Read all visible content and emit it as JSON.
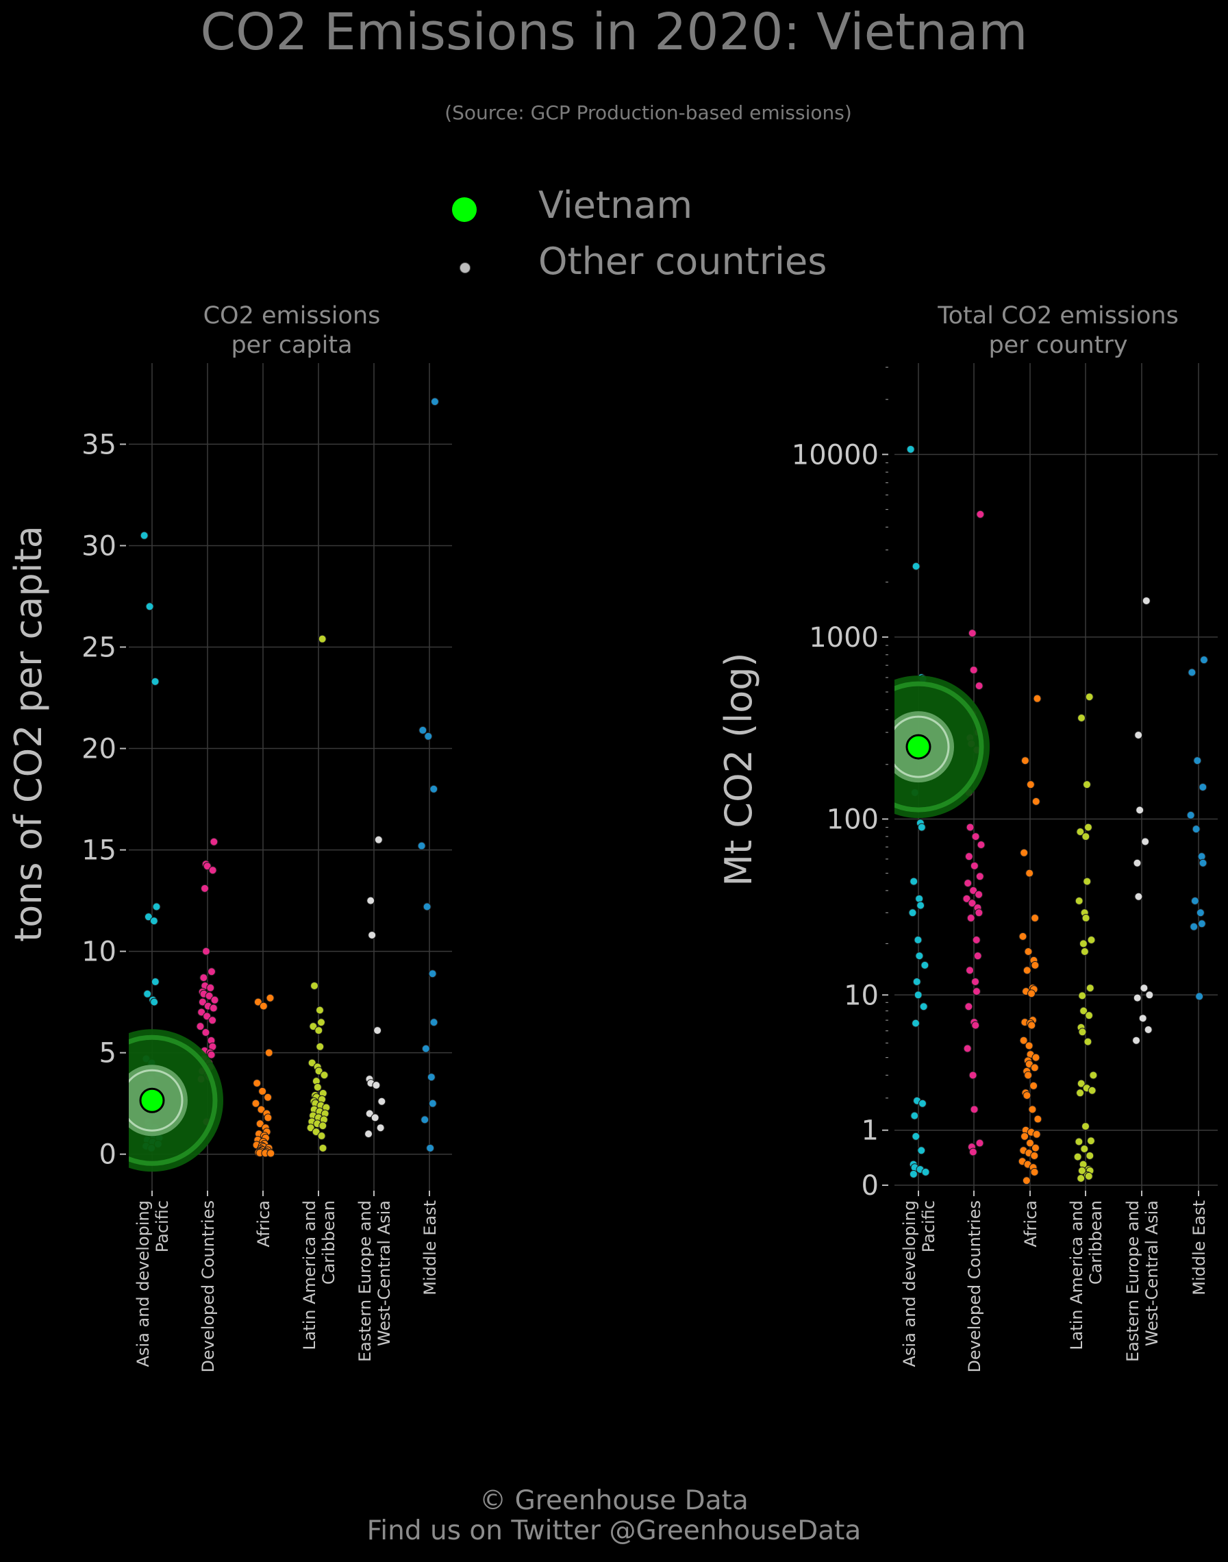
{
  "title": "CO2 Emissions in 2020: Vietnam",
  "subtitle": "(Source: GCP Production-based emissions)",
  "legend": {
    "highlight_label": "Vietnam",
    "other_label": "Other countries",
    "highlight_color": "#00ff00",
    "other_color": "#bdbdbd"
  },
  "footer": {
    "line1": "© Greenhouse Data",
    "line2": "Find us on Twitter @GreenhouseData"
  },
  "colors": {
    "Asia and developing Pacific": "#17becf",
    "Developed Countries": "#e7298a",
    "Africa": "#ff7f0e",
    "Latin America and Caribbean": "#bcd22b",
    "Eastern Europe and West-Central Asia": "#dcdcdc",
    "Middle East": "#1f8fc9"
  },
  "chart_data": [
    {
      "type": "scatter",
      "title_line1": "CO2 emissions",
      "title_line2": "per capita",
      "ylabel": "tons of CO2 per capita",
      "ylim": [
        -1.8,
        39
      ],
      "yticks": [
        0,
        5,
        10,
        15,
        20,
        25,
        30,
        35
      ],
      "grid": true,
      "categories": [
        [
          "Asia and developing",
          "Pacific"
        ],
        [
          "Developed Countries"
        ],
        [
          "Africa"
        ],
        [
          "Latin America and",
          "Caribbean"
        ],
        [
          "Eastern Europe and",
          "West-Central Asia"
        ],
        [
          "Middle East"
        ]
      ],
      "highlight": {
        "category": 0,
        "value": 2.65,
        "name": "Vietnam"
      },
      "series": [
        {
          "category": "Asia and developing Pacific",
          "values": [
            30.5,
            27.0,
            23.3,
            12.2,
            11.7,
            11.5,
            8.5,
            7.9,
            7.6,
            7.5,
            4.7,
            4.5,
            4.2,
            4.0,
            3.7,
            3.4,
            3.0,
            2.5,
            2.2,
            1.9,
            1.6,
            1.4,
            1.3,
            1.2,
            1.0,
            0.9,
            0.8,
            0.7,
            0.6,
            0.5,
            0.4,
            0.3
          ]
        },
        {
          "category": "Developed Countries",
          "values": [
            15.4,
            14.3,
            14.2,
            14.0,
            13.1,
            10.0,
            9.0,
            8.7,
            8.3,
            8.2,
            8.0,
            7.9,
            7.8,
            7.6,
            7.5,
            7.3,
            7.2,
            7.0,
            6.8,
            6.6,
            6.3,
            6.0,
            5.6,
            5.3,
            5.1,
            5.0,
            4.9,
            4.7,
            4.5,
            4.3,
            4.1,
            3.9,
            3.8,
            3.7,
            1.6
          ]
        },
        {
          "category": "Africa",
          "values": [
            7.7,
            7.5,
            7.3,
            5.0,
            3.5,
            3.1,
            2.8,
            2.5,
            2.2,
            2.0,
            1.8,
            1.5,
            1.3,
            1.1,
            1.0,
            0.9,
            0.8,
            0.7,
            0.6,
            0.5,
            0.45,
            0.4,
            0.35,
            0.3,
            0.25,
            0.2,
            0.18,
            0.15,
            0.12,
            0.1,
            0.08,
            0.06,
            0.05,
            0.04
          ]
        },
        {
          "category": "Latin America and Caribbean",
          "values": [
            25.4,
            8.3,
            7.1,
            6.5,
            6.3,
            6.1,
            5.3,
            4.5,
            4.3,
            4.1,
            3.9,
            3.6,
            3.3,
            3.0,
            2.9,
            2.8,
            2.7,
            2.6,
            2.5,
            2.4,
            2.3,
            2.2,
            2.1,
            2.0,
            1.9,
            1.8,
            1.7,
            1.6,
            1.5,
            1.4,
            1.3,
            1.1,
            0.9,
            0.3
          ]
        },
        {
          "category": "Eastern Europe and West-Central Asia",
          "values": [
            15.5,
            12.5,
            10.8,
            6.1,
            3.7,
            3.5,
            3.4,
            2.6,
            2.0,
            1.8,
            1.3,
            1.0
          ]
        },
        {
          "category": "Middle East",
          "values": [
            37.1,
            20.9,
            20.6,
            18.0,
            15.2,
            12.2,
            8.9,
            6.5,
            5.2,
            3.8,
            2.5,
            1.7,
            0.3
          ]
        }
      ]
    },
    {
      "type": "scatter",
      "title_line1": "Total CO2 emissions",
      "title_line2": "per country",
      "ylabel": "Mt CO2 (log)",
      "yscale": "log1p",
      "ylim": [
        -0.03,
        4.5
      ],
      "yticks": [
        0,
        1,
        10,
        100,
        1000,
        10000
      ],
      "grid": true,
      "categories": [
        [
          "Asia and developing",
          "Pacific"
        ],
        [
          "Developed Countries"
        ],
        [
          "Africa"
        ],
        [
          "Latin America and",
          "Caribbean"
        ],
        [
          "Eastern Europe and",
          "West-Central Asia"
        ],
        [
          "Middle East"
        ]
      ],
      "highlight": {
        "category": 0,
        "value": 250,
        "name": "Vietnam"
      },
      "series": [
        {
          "category": "Asia and developing Pacific",
          "values": [
            10668,
            2440,
            600,
            590,
            140,
            95,
            90,
            45,
            36,
            33,
            30,
            21,
            17,
            15,
            12,
            10,
            8.5,
            6.7,
            1.9,
            1.8,
            1.4,
            0.85,
            0.55,
            0.3,
            0.25,
            0.22,
            0.18,
            0.15
          ]
        },
        {
          "category": "Developed Countries",
          "values": [
            4700,
            1050,
            660,
            540,
            390,
            380,
            300,
            280,
            260,
            240,
            140,
            90,
            80,
            72,
            62,
            55,
            48,
            44,
            40,
            38,
            36,
            34,
            32,
            30,
            28,
            21,
            17,
            14,
            12,
            10.5,
            8.5,
            6.8,
            6.5,
            4.6,
            3.0,
            1.6,
            0.7,
            0.62,
            0.52
          ]
        },
        {
          "category": "Africa",
          "values": [
            460,
            210,
            155,
            125,
            65,
            50,
            28,
            22,
            18,
            16,
            15,
            14,
            11,
            10.8,
            10.5,
            10.2,
            7,
            6.8,
            6.7,
            6.5,
            5.2,
            4.8,
            4.2,
            4.0,
            3.8,
            3.6,
            3.4,
            3.2,
            3.0,
            2.5,
            2.2,
            2.1,
            1.6,
            1.3,
            1.0,
            0.95,
            0.9,
            0.85,
            0.7,
            0.6,
            0.55,
            0.5,
            0.45,
            0.35,
            0.3,
            0.25,
            0.18,
            0.06
          ]
        },
        {
          "category": "Latin America and Caribbean",
          "values": [
            470,
            360,
            155,
            90,
            85,
            80,
            45,
            35,
            30,
            28,
            21,
            20,
            18,
            11,
            9.9,
            8,
            7.5,
            6.3,
            5.9,
            5.1,
            3,
            2.6,
            2.4,
            2.3,
            2.2,
            1.1,
            0.75,
            0.73,
            0.58,
            0.45,
            0.43,
            0.3,
            0.22,
            0.2,
            0.2,
            0.13,
            0.12,
            0.09
          ]
        },
        {
          "category": "Eastern Europe and West-Central Asia",
          "values": [
            1580,
            290,
            112,
            75,
            57,
            37,
            11,
            10,
            9.6,
            7.2,
            6.1,
            5.2
          ]
        },
        {
          "category": "Middle East",
          "values": [
            750,
            640,
            210,
            150,
            105,
            88,
            62,
            57,
            35,
            30,
            26,
            25,
            9.8
          ]
        }
      ]
    }
  ]
}
